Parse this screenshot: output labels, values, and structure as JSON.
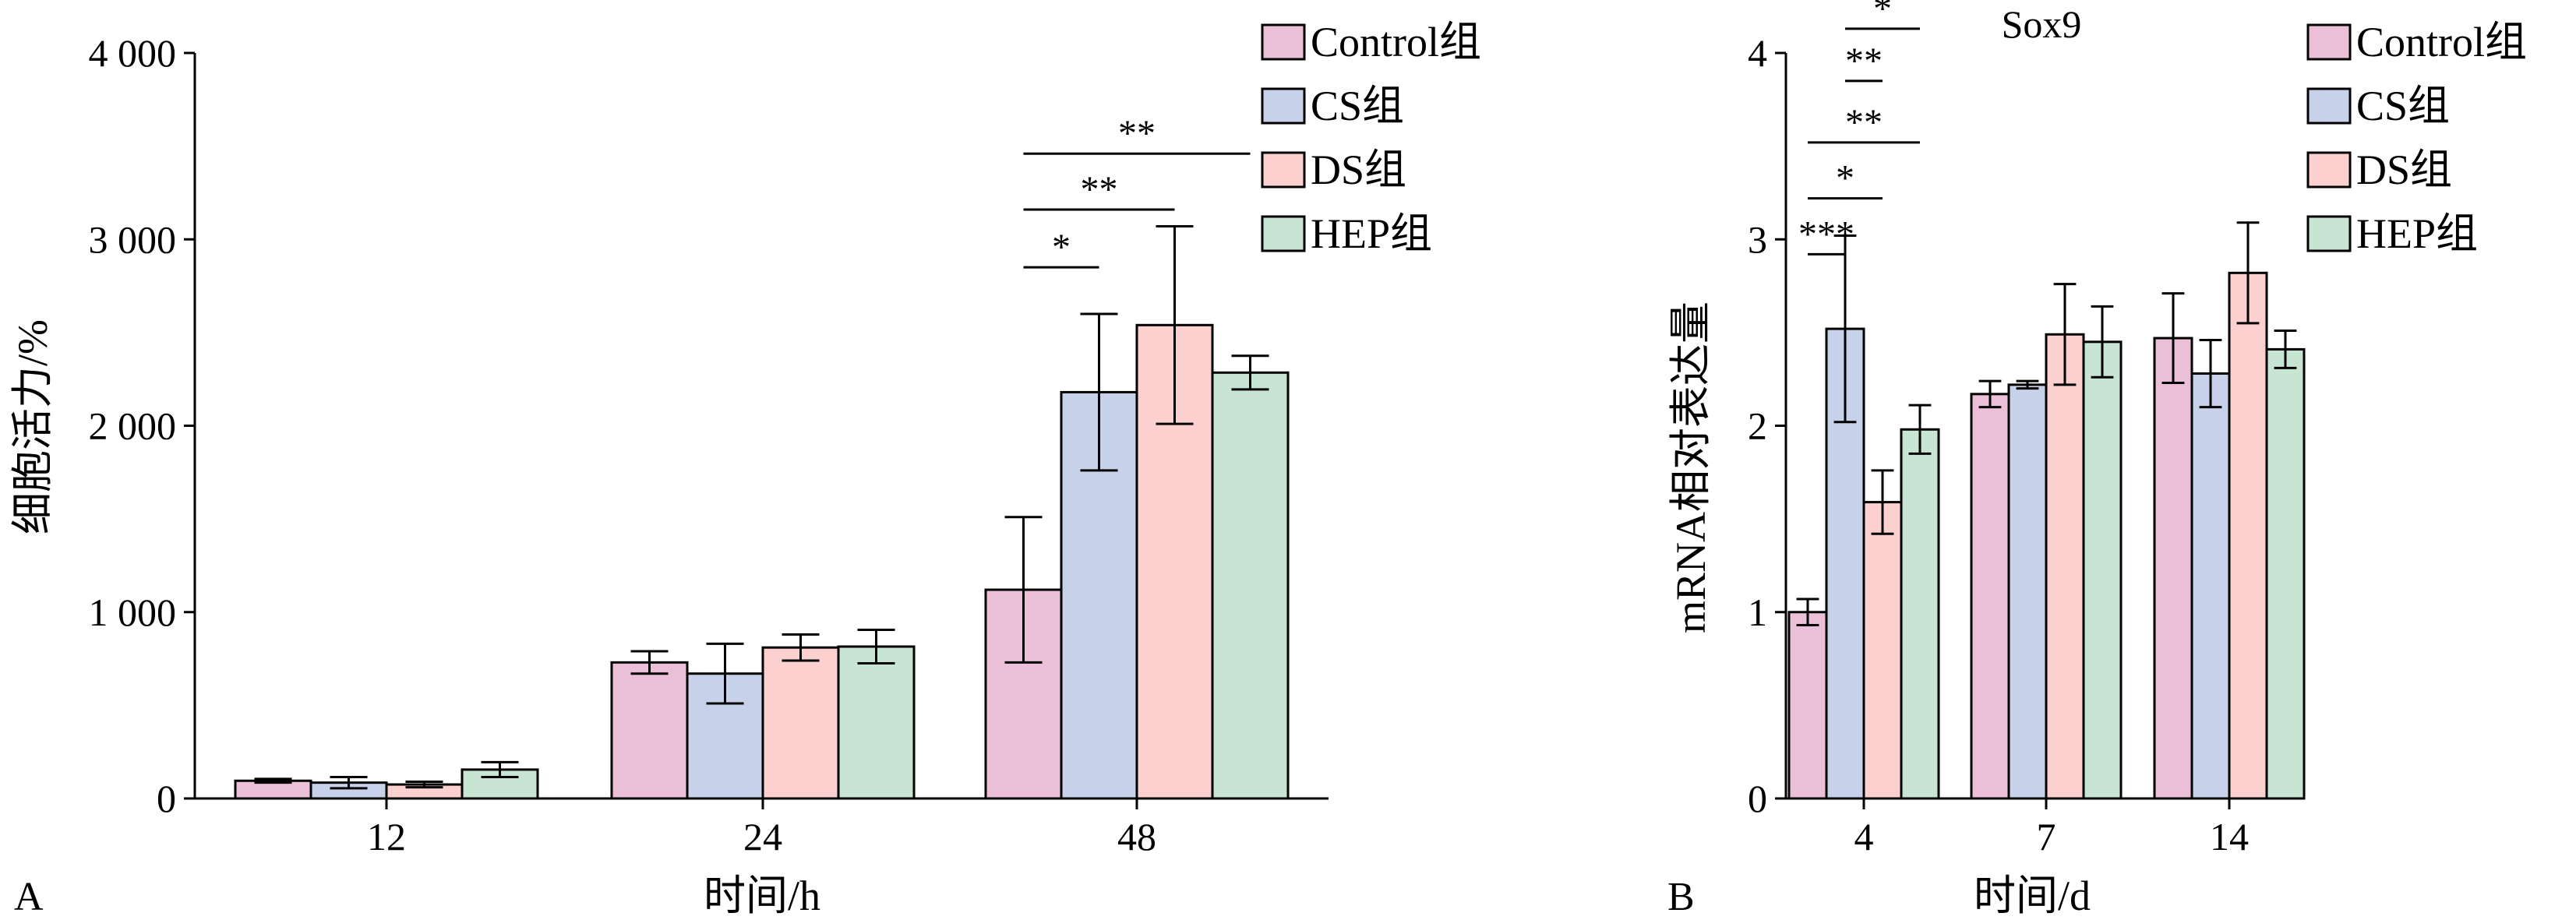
{
  "chart_data": [
    {
      "panel": "A",
      "type": "bar",
      "title": "",
      "xlabel": "时间/h",
      "ylabel": "细胞活力/%",
      "categories": [
        "12",
        "24",
        "48"
      ],
      "ylim": [
        0,
        4000
      ],
      "yticks": [
        0,
        1000,
        2000,
        3000,
        4000
      ],
      "ytick_labels": [
        "0",
        "1 000",
        "2 000",
        "3 000",
        "4 000"
      ],
      "legend_position": "top-right",
      "grid": false,
      "series": [
        {
          "name": "Control组",
          "color": "#ecbfd8",
          "values": [
            95,
            730,
            1120
          ],
          "errors": [
            10,
            60,
            390
          ]
        },
        {
          "name": "CS组",
          "color": "#c7d2ea",
          "values": [
            85,
            670,
            2180
          ],
          "errors": [
            30,
            160,
            420
          ]
        },
        {
          "name": "DS组",
          "color": "#fdd0d0",
          "values": [
            75,
            810,
            2540
          ],
          "errors": [
            15,
            70,
            530
          ]
        },
        {
          "name": "HEP组",
          "color": "#c8e4d3",
          "values": [
            155,
            815,
            2285
          ],
          "errors": [
            40,
            90,
            90
          ]
        }
      ],
      "significance": [
        {
          "label": "*",
          "category": "48",
          "from_series": 0,
          "to_series": 1,
          "y": 2850
        },
        {
          "label": "**",
          "category": "48",
          "from_series": 0,
          "to_series": 2,
          "y": 3160
        },
        {
          "label": "**",
          "category": "48",
          "from_series": 0,
          "to_series": 3,
          "y": 3460
        }
      ]
    },
    {
      "panel": "B",
      "type": "bar",
      "title": "Sox9",
      "xlabel": "时间/d",
      "ylabel": "mRNA相对表达量",
      "categories": [
        "4",
        "7",
        "14"
      ],
      "ylim": [
        0,
        4
      ],
      "yticks": [
        0,
        1,
        2,
        3,
        4
      ],
      "ytick_labels": [
        "0",
        "1",
        "2",
        "3",
        "4"
      ],
      "legend_position": "top-right",
      "grid": false,
      "series": [
        {
          "name": "Control组",
          "color": "#ecbfd8",
          "values": [
            1.0,
            2.17,
            2.47
          ],
          "errors": [
            0.07,
            0.07,
            0.24
          ]
        },
        {
          "name": "CS组",
          "color": "#c7d2ea",
          "values": [
            2.52,
            2.22,
            2.28
          ],
          "errors": [
            0.5,
            0.02,
            0.18
          ]
        },
        {
          "name": "DS组",
          "color": "#fdd0d0",
          "values": [
            1.59,
            2.49,
            2.82
          ],
          "errors": [
            0.17,
            0.27,
            0.27
          ]
        },
        {
          "name": "HEP组",
          "color": "#c8e4d3",
          "values": [
            1.98,
            2.45,
            2.41
          ],
          "errors": [
            0.13,
            0.19,
            0.1
          ]
        }
      ],
      "significance": [
        {
          "label": "***",
          "category": "4",
          "from_series": 0,
          "to_series": 1,
          "y": 2.92
        },
        {
          "label": "*",
          "category": "4",
          "from_series": 0,
          "to_series": 2,
          "y": 3.22
        },
        {
          "label": "**",
          "category": "4",
          "from_series": 0,
          "to_series": 3,
          "y": 3.52
        },
        {
          "label": "**",
          "category": "4",
          "from_series": 1,
          "to_series": 2,
          "y": 3.85
        },
        {
          "label": "*",
          "category": "4",
          "from_series": 1,
          "to_series": 3,
          "y": 4.13
        }
      ]
    }
  ]
}
